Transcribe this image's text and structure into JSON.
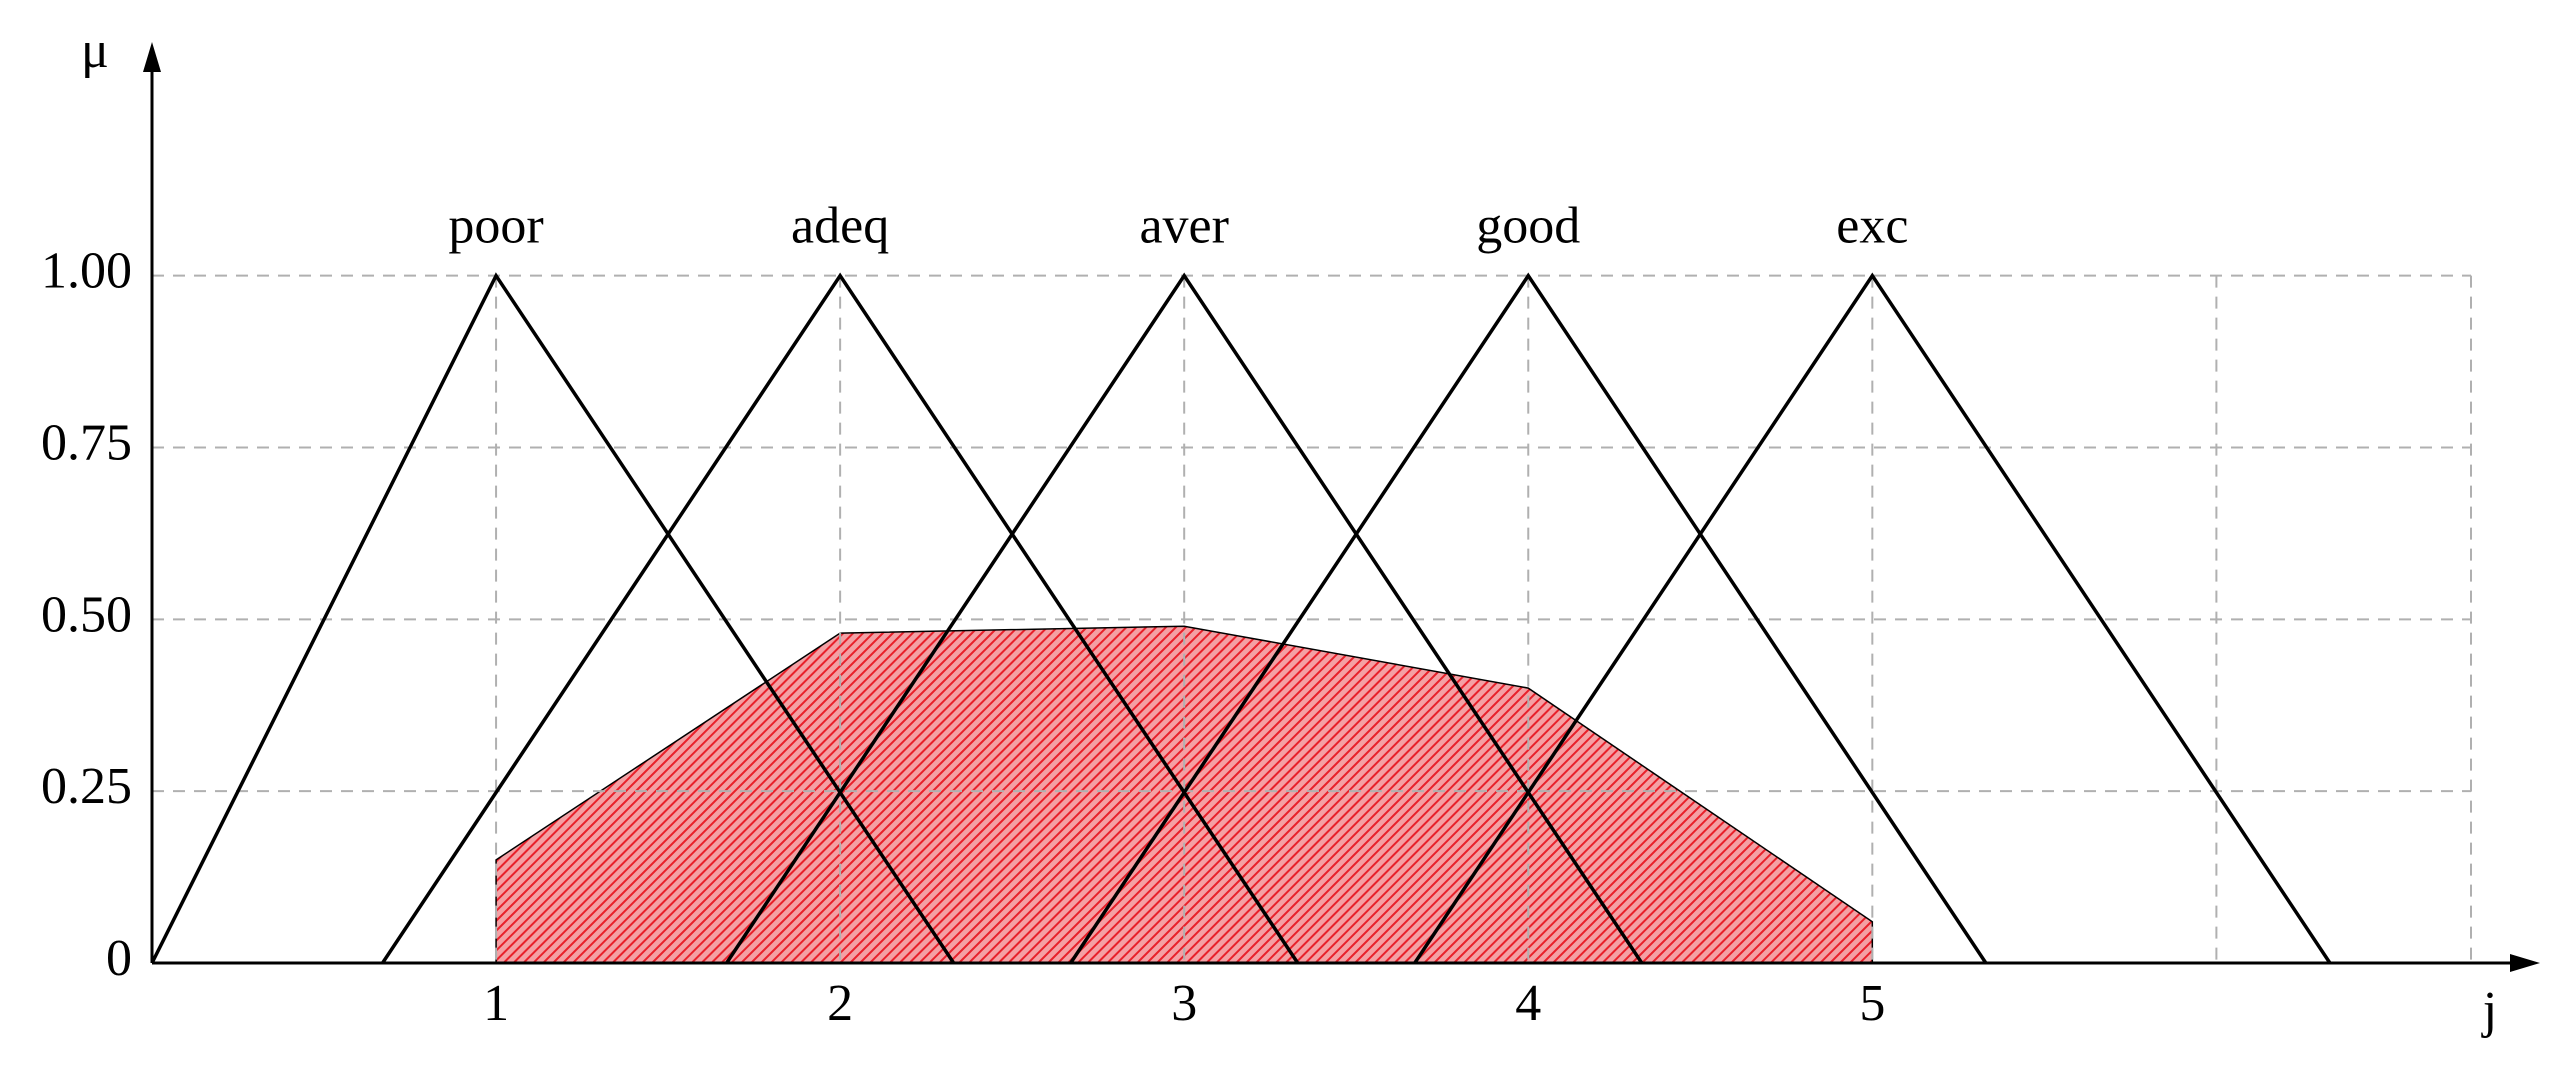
{
  "chart_data": {
    "type": "line",
    "y_label": "μ",
    "x_label": "j",
    "xlim": [
      0,
      6.74
    ],
    "ylim": [
      0,
      1.34
    ],
    "xticks": [
      1,
      2,
      3,
      4,
      5,
      {
        "value": 6,
        "label": null
      }
    ],
    "yticks": [
      {
        "value": 0,
        "label": "0"
      },
      {
        "value": 0.25,
        "label": "0.25"
      },
      {
        "value": 0.5,
        "label": "0.50"
      },
      {
        "value": 0.75,
        "label": "0.75"
      },
      {
        "value": 1,
        "label": "1.00"
      }
    ],
    "grid": true,
    "series": [
      {
        "name": "poor",
        "color": "#000000",
        "x": [
          0,
          1,
          2.33
        ],
        "values": [
          0,
          1,
          0
        ]
      },
      {
        "name": "adeq",
        "color": "#000000",
        "x": [
          0.67,
          2,
          3.33
        ],
        "values": [
          0,
          1,
          0
        ]
      },
      {
        "name": "aver",
        "color": "#000000",
        "x": [
          1.67,
          3,
          4.33
        ],
        "values": [
          0,
          1,
          0
        ]
      },
      {
        "name": "good",
        "color": "#000000",
        "x": [
          2.67,
          4,
          5.33
        ],
        "values": [
          0,
          1,
          0
        ]
      },
      {
        "name": "exc",
        "color": "#000000",
        "x": [
          3.67,
          5,
          6.33
        ],
        "values": [
          0,
          1,
          0
        ]
      }
    ],
    "shaded_area": {
      "color": "#e8202a",
      "x": [
        1,
        1,
        2,
        3,
        4,
        5,
        5
      ],
      "values": [
        0,
        0.15,
        0.48,
        0.49,
        0.4,
        0.06,
        0
      ]
    }
  }
}
